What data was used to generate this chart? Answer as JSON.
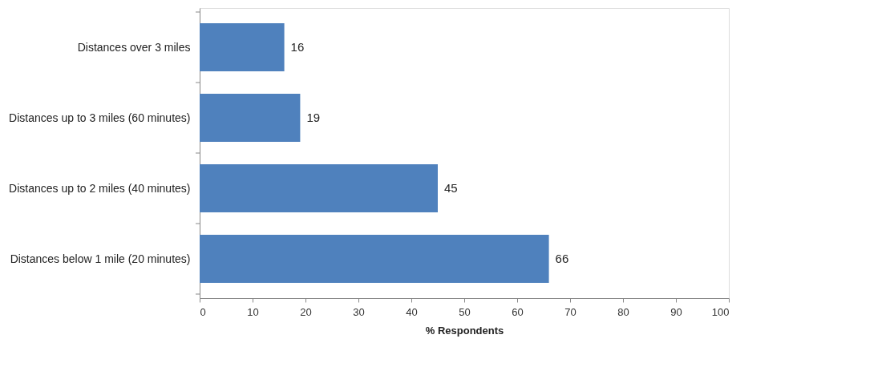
{
  "chart_data": {
    "type": "bar",
    "orientation": "horizontal",
    "xlabel": "% Respondents",
    "categories": [
      "Distances over 3 miles",
      "Distances up to 3 miles (60 minutes)",
      "Distances up to 2 miles (40 minutes)",
      "Distances below 1 mile (20 minutes)"
    ],
    "values": [
      16,
      19,
      45,
      66
    ],
    "color": "#4f81bd",
    "xlim": [
      0,
      100
    ],
    "xticks": [
      0,
      10,
      20,
      30,
      40,
      50,
      60,
      70,
      80,
      90,
      100
    ],
    "data_labels": true,
    "grid": false
  }
}
